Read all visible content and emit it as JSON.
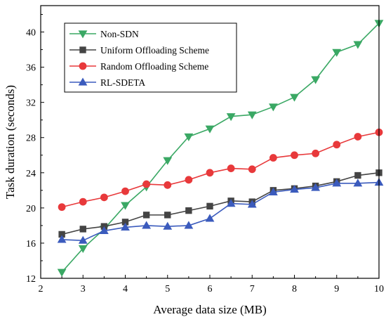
{
  "chart_data": {
    "type": "line",
    "title": "",
    "xlabel": "Average data size (MB)",
    "ylabel": "Task duration (seconds)",
    "xlim": [
      2,
      10
    ],
    "ylim": [
      12,
      43
    ],
    "xticks": [
      2,
      3,
      4,
      5,
      6,
      7,
      8,
      9,
      10
    ],
    "yticks": [
      12,
      16,
      20,
      24,
      28,
      32,
      36,
      40
    ],
    "grid": false,
    "legend_position": "top-left",
    "x": [
      2.5,
      3,
      3.5,
      4,
      4.5,
      5,
      5.5,
      6,
      6.5,
      7,
      7.5,
      8,
      8.5,
      9,
      9.5,
      10
    ],
    "series": [
      {
        "name": "Non-SDN",
        "color": "#3aa864",
        "marker": "triangle-down",
        "values": [
          12.7,
          15.4,
          17.6,
          20.3,
          22.4,
          25.4,
          28.1,
          29.0,
          30.4,
          30.6,
          31.5,
          32.6,
          34.6,
          37.7,
          38.6,
          41.0
        ]
      },
      {
        "name": "Uniform Offloading Scheme",
        "color": "#444444",
        "marker": "square",
        "values": [
          17.0,
          17.6,
          17.9,
          18.4,
          19.2,
          19.2,
          19.7,
          20.2,
          20.8,
          20.7,
          22.0,
          22.2,
          22.5,
          23.0,
          23.7,
          24.0
        ]
      },
      {
        "name": "Random Offloading Scheme",
        "color": "#e8393b",
        "marker": "circle",
        "values": [
          20.1,
          20.7,
          21.2,
          21.9,
          22.7,
          22.6,
          23.2,
          24.0,
          24.5,
          24.4,
          25.7,
          26.0,
          26.2,
          27.2,
          28.1,
          28.6
        ]
      },
      {
        "name": "RL-SDETA",
        "color": "#3b5bbd",
        "marker": "triangle-up",
        "values": [
          16.4,
          16.3,
          17.4,
          17.8,
          18.0,
          17.9,
          18.0,
          18.8,
          20.5,
          20.4,
          21.8,
          22.1,
          22.3,
          22.8,
          22.8,
          22.9
        ]
      }
    ]
  }
}
